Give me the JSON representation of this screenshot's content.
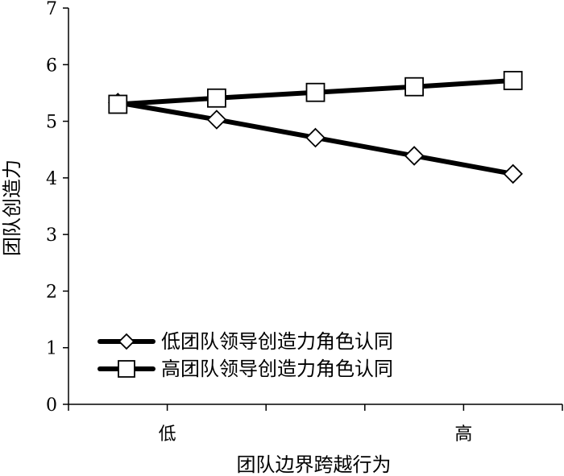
{
  "chart_data": {
    "type": "line",
    "xlabel": "团队边界跨越行为",
    "ylabel": "团队创造力",
    "ylim": [
      0,
      7
    ],
    "yticks": [
      0,
      1,
      2,
      3,
      4,
      5,
      6,
      7
    ],
    "x_points": 5,
    "x_tick_labels": [
      {
        "position": 1,
        "label": "低"
      },
      {
        "position": 4,
        "label": "高"
      }
    ],
    "grid": false,
    "legend_position": "bottom-left",
    "series": [
      {
        "name": "低团队领导创造力角色认同",
        "marker": "diamond",
        "color": "#000000",
        "values": [
          5.33,
          5.03,
          4.71,
          4.39,
          4.07
        ]
      },
      {
        "name": "高团队领导创造力角色认同",
        "marker": "square",
        "color": "#000000",
        "values": [
          5.3,
          5.41,
          5.51,
          5.61,
          5.72
        ]
      }
    ]
  }
}
